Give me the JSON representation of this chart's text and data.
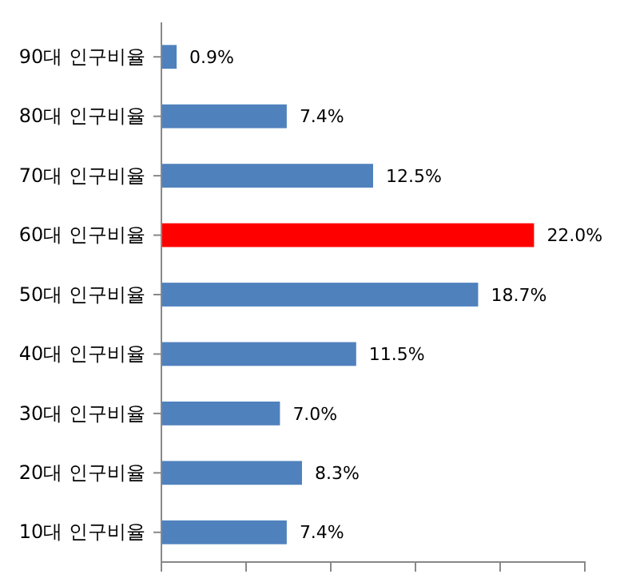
{
  "chart_data": {
    "type": "bar",
    "orientation": "horizontal",
    "categories": [
      "90대 인구비율",
      "80대 인구비율",
      "70대 인구비율",
      "60대 인구비율",
      "50대 인구비율",
      "40대 인구비율",
      "30대 인구비율",
      "20대 인구비율",
      "10대 인구비율"
    ],
    "values": [
      0.9,
      7.4,
      12.5,
      22.0,
      18.7,
      11.5,
      7.0,
      8.3,
      7.4
    ],
    "value_labels": [
      "0.9%",
      "7.4%",
      "12.5%",
      "22.0%",
      "18.7%",
      "11.5%",
      "7.0%",
      "8.3%",
      "7.4%"
    ],
    "colors": [
      "#4f81bd",
      "#4f81bd",
      "#4f81bd",
      "#ff0000",
      "#4f81bd",
      "#4f81bd",
      "#4f81bd",
      "#4f81bd",
      "#4f81bd"
    ],
    "xlim": [
      0,
      25
    ],
    "xticks": [
      {
        "value": 0,
        "label": null
      },
      {
        "value": 5,
        "label": null
      },
      {
        "value": 10,
        "label": null
      },
      {
        "value": 15,
        "label": null
      },
      {
        "value": 20,
        "label": null
      },
      {
        "value": 25,
        "label": null
      }
    ],
    "tick_labels": "y",
    "grid": false
  }
}
